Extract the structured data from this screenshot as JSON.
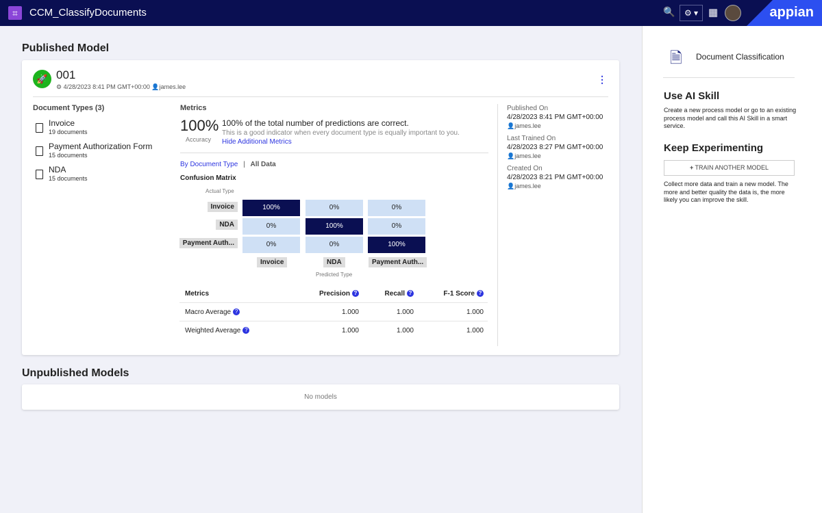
{
  "header": {
    "title": "CCM_ClassifyDocuments",
    "brand": "appian"
  },
  "published": {
    "title": "Published Model",
    "model_id": "001",
    "date": "4/28/2023 8:41 PM GMT+00:00",
    "user": "james.lee",
    "doc_types_title": "Document Types (3)",
    "doc_types": [
      {
        "name": "Invoice",
        "count": "19 documents"
      },
      {
        "name": "Payment Authorization Form",
        "count": "15 documents"
      },
      {
        "name": "NDA",
        "count": "15 documents"
      }
    ],
    "metrics_title": "Metrics",
    "accuracy": "100%",
    "accuracy_label": "Accuracy",
    "accuracy_headline": "100% of the total number of predictions are correct.",
    "accuracy_desc": "This is a good indicator when every document type is equally important to you.",
    "hide_link": "Hide Additional Metrics",
    "tab_by_type": "By Document Type",
    "sep": "|",
    "tab_all": "All Data",
    "cm_title": "Confusion Matrix",
    "actual_label": "Actual Type",
    "predicted_label": "Predicted Type",
    "rows": [
      "Invoice",
      "NDA",
      "Payment Auth..."
    ],
    "cols": [
      "Invoice",
      "NDA",
      "Payment Auth..."
    ],
    "matrix": [
      [
        "100%",
        "0%",
        "0%"
      ],
      [
        "0%",
        "100%",
        "0%"
      ],
      [
        "0%",
        "0%",
        "100%"
      ]
    ],
    "table_headers": [
      "Metrics",
      "Precision",
      "Recall",
      "F-1 Score"
    ],
    "table_rows": [
      {
        "name": "Macro Average",
        "p": "1.000",
        "r": "1.000",
        "f": "1.000"
      },
      {
        "name": "Weighted Average",
        "p": "1.000",
        "r": "1.000",
        "f": "1.000"
      }
    ],
    "published_on_label": "Published On",
    "published_on": "4/28/2023 8:41 PM GMT+00:00",
    "published_by": "james.lee",
    "trained_label": "Last Trained On",
    "trained_on": "4/28/2023 8:27 PM GMT+00:00",
    "trained_by": "james.lee",
    "created_label": "Created On",
    "created_on": "4/28/2023 8:21 PM GMT+00:00",
    "created_by": "james.lee"
  },
  "unpublished": {
    "title": "Unpublished Models",
    "empty": "No models"
  },
  "side": {
    "title": "Document Classification",
    "use_title": "Use AI Skill",
    "use_text": "Create a new process model or go to an existing process model and call this AI Skill in a smart service.",
    "keep_title": "Keep Experimenting",
    "train_btn": "TRAIN ANOTHER MODEL",
    "keep_text": "Collect more data and train a new model. The more and better quality the data is, the more likely you can improve the skill."
  }
}
